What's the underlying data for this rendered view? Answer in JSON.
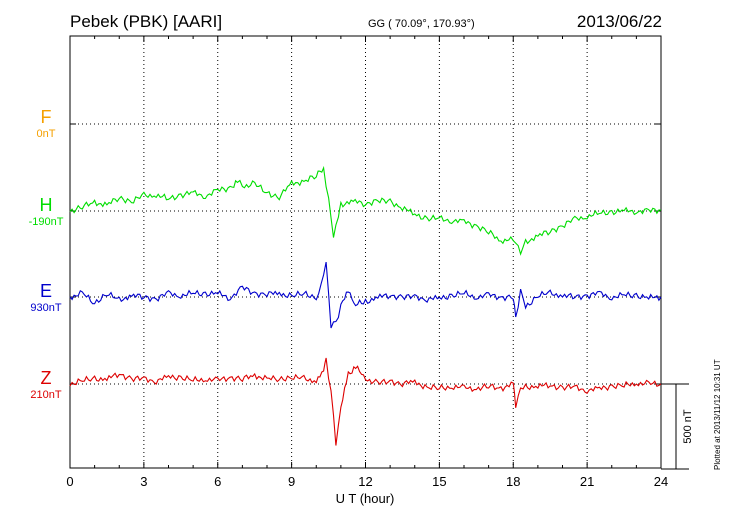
{
  "header": {
    "title": "Pebek (PBK)  [AARI]",
    "coords": "GG ( 70.09°, 170.93°)",
    "date": "2013/06/22"
  },
  "plotted_note": "Plotted at 2013/11/12 10:31  UT",
  "colors": {
    "F": "#f5a000",
    "H": "#00dd00",
    "E": "#0000cc",
    "Z": "#dd0000"
  },
  "chart_data": {
    "type": "line",
    "title": "Pebek (PBK)  [AARI]",
    "xlabel": "U T (hour)",
    "xlim": [
      0,
      24
    ],
    "x_ticks": [
      "0",
      "3",
      "6",
      "9",
      "12",
      "15",
      "18",
      "21",
      "24"
    ],
    "grid": true,
    "scale_bar": {
      "label": "500 nT",
      "value_nT": 500
    },
    "series": [
      {
        "name": "F",
        "baseline": "0nT",
        "x": [],
        "y": []
      },
      {
        "name": "H",
        "baseline": "-190nT",
        "x": [
          0,
          0.5,
          1,
          1.5,
          2,
          2.5,
          3,
          3.5,
          4,
          4.5,
          5,
          5.5,
          6,
          6.5,
          6.8,
          7,
          7.5,
          8,
          8.5,
          9,
          9.5,
          10,
          10.3,
          10.5,
          10.7,
          10.9,
          11,
          11.5,
          12,
          12.5,
          13,
          13.5,
          14,
          14.5,
          15,
          15.5,
          16,
          16.5,
          17,
          17.5,
          17.9,
          18.1,
          18.3,
          18.5,
          19,
          19.5,
          20,
          20.5,
          21,
          21.5,
          22,
          22.5,
          23,
          23.5,
          24
        ],
        "y": [
          0,
          25,
          50,
          35,
          80,
          55,
          90,
          95,
          70,
          95,
          105,
          90,
          120,
          135,
          180,
          145,
          160,
          105,
          85,
          160,
          175,
          205,
          260,
          60,
          -145,
          -30,
          40,
          55,
          45,
          60,
          55,
          20,
          -20,
          -45,
          -45,
          -55,
          -65,
          -85,
          -125,
          -175,
          -165,
          -185,
          -240,
          -185,
          -145,
          -120,
          -85,
          -50,
          -30,
          -15,
          -5,
          0,
          0,
          0,
          5
        ],
        "y_unit": "nT"
      },
      {
        "name": "E",
        "baseline": "930nT",
        "x": [
          0,
          0.5,
          1,
          1.5,
          2,
          2.5,
          3,
          3.5,
          4,
          4.5,
          5,
          5.5,
          6,
          6.5,
          7,
          7.5,
          8,
          8.5,
          9,
          9.5,
          10,
          10.2,
          10.4,
          10.6,
          10.8,
          11,
          11.3,
          11.6,
          12,
          12.5,
          13,
          13.5,
          14,
          14.5,
          15,
          15.5,
          16,
          16.5,
          17,
          17.5,
          18,
          18.1,
          18.3,
          18.5,
          19,
          19.5,
          20,
          20.5,
          21,
          21.5,
          22,
          22.5,
          23,
          23.5,
          24
        ],
        "y": [
          0,
          20,
          -35,
          20,
          -20,
          10,
          0,
          -10,
          20,
          10,
          20,
          20,
          20,
          -5,
          55,
          20,
          20,
          20,
          5,
          20,
          0,
          60,
          210,
          -175,
          -145,
          -55,
          40,
          -45,
          -30,
          0,
          10,
          0,
          0,
          -10,
          -10,
          10,
          20,
          0,
          10,
          0,
          0,
          -125,
          40,
          -60,
          10,
          20,
          10,
          0,
          10,
          20,
          0,
          10,
          10,
          -5,
          0
        ],
        "y_unit": "nT"
      },
      {
        "name": "Z",
        "baseline": "210nT",
        "x": [
          0,
          0.5,
          1,
          1.5,
          2,
          2.5,
          3,
          3.5,
          4,
          4.5,
          5,
          5.5,
          6,
          6.5,
          7,
          7.5,
          8,
          8.5,
          9,
          9.5,
          10,
          10.3,
          10.4,
          10.6,
          10.8,
          11,
          11.3,
          11.6,
          12,
          12.5,
          13,
          13.5,
          14,
          14.5,
          15,
          15.5,
          16,
          16.5,
          17,
          17.5,
          18,
          18.1,
          18.3,
          18.5,
          19,
          19.5,
          20,
          20.5,
          21,
          21.5,
          22,
          22.5,
          23,
          23.5,
          24
        ],
        "y": [
          0,
          20,
          30,
          30,
          60,
          30,
          30,
          20,
          40,
          40,
          20,
          30,
          20,
          40,
          30,
          50,
          30,
          30,
          40,
          30,
          20,
          80,
          150,
          -50,
          -345,
          -140,
          60,
          100,
          30,
          5,
          15,
          5,
          10,
          -20,
          -25,
          -15,
          -25,
          -25,
          -15,
          -25,
          0,
          -130,
          -20,
          -20,
          -10,
          -10,
          -20,
          -20,
          -35,
          -30,
          -10,
          -10,
          5,
          0,
          0
        ],
        "y_unit": "nT"
      }
    ]
  }
}
